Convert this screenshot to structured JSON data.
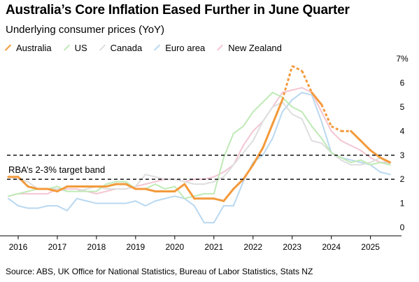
{
  "title": "Australia’s Core Inflation Eased Further in June Quarter",
  "subtitle": "Underlying consumer prices (YoY)",
  "source": "Source: ABS, UK Office for National Statistics, Bureau of Labor Statistics, Stats NZ",
  "chart_data": {
    "type": "line",
    "title": "Australia’s Core Inflation Eased Further in June Quarter",
    "subtitle": "Underlying consumer prices (YoY)",
    "xlim": [
      2015.75,
      2025.65
    ],
    "ylim": [
      -0.2,
      7
    ],
    "y_ticks": [
      0,
      1,
      2,
      3,
      4,
      5,
      6,
      7
    ],
    "y_tick_labels": [
      "0",
      "1",
      "2",
      "3",
      "4",
      "5",
      "6",
      "7%"
    ],
    "x_ticks": [
      2016,
      2017,
      2018,
      2019,
      2020,
      2021,
      2022,
      2023,
      2024,
      2025
    ],
    "x_tick_labels": [
      "2016",
      "2017",
      "2018",
      "2019",
      "2020",
      "2021",
      "2022",
      "2023",
      "2024",
      "2025"
    ],
    "legend_position": "top",
    "grid": false,
    "reference_lines": [
      {
        "y": 3,
        "style": "dashed"
      },
      {
        "y": 2,
        "style": "dashed"
      }
    ],
    "annotations": [
      {
        "text": "RBA’s 2-3% target band"
      }
    ],
    "series": [
      {
        "name": "Australia",
        "color": "#f39a3c",
        "x": [
          2015.75,
          2016.0,
          2016.25,
          2016.5,
          2016.75,
          2017.0,
          2017.25,
          2017.5,
          2017.75,
          2018.0,
          2018.25,
          2018.5,
          2018.75,
          2019.0,
          2019.25,
          2019.5,
          2019.75,
          2020.0,
          2020.25,
          2020.5,
          2020.75,
          2021.0,
          2021.25,
          2021.5,
          2021.75,
          2022.0,
          2022.25,
          2022.5,
          2022.75,
          2023.0,
          2023.25,
          2023.5,
          2023.75,
          2024.0,
          2024.25,
          2024.5,
          2024.75,
          2025.0,
          2025.25,
          2025.5
        ],
        "values": [
          2.1,
          2.1,
          1.7,
          1.6,
          1.6,
          1.5,
          1.7,
          1.7,
          1.7,
          1.7,
          1.7,
          1.8,
          1.8,
          1.6,
          1.6,
          1.5,
          1.5,
          1.5,
          1.8,
          1.2,
          1.2,
          1.2,
          1.1,
          1.6,
          2.0,
          2.6,
          3.3,
          4.3,
          5.3,
          6.7,
          6.5,
          5.6,
          5.1,
          4.2,
          4.0,
          4.0,
          3.6,
          3.2,
          2.9,
          2.7
        ],
        "dashed_segments_between": [
          [
            2022.75,
            2023.5
          ],
          [
            2023.75,
            2024.5
          ]
        ]
      },
      {
        "name": "US",
        "color": "#bfeab6",
        "x": [
          2015.75,
          2016.0,
          2016.25,
          2016.5,
          2016.75,
          2017.0,
          2017.25,
          2017.5,
          2017.75,
          2018.0,
          2018.25,
          2018.5,
          2018.75,
          2019.0,
          2019.25,
          2019.5,
          2019.75,
          2020.0,
          2020.25,
          2020.5,
          2020.75,
          2021.0,
          2021.25,
          2021.5,
          2021.75,
          2022.0,
          2022.25,
          2022.5,
          2022.75,
          2023.0,
          2023.25,
          2023.5,
          2023.75,
          2024.0,
          2024.25,
          2024.5,
          2024.75,
          2025.0,
          2025.25,
          2025.5
        ],
        "values": [
          1.3,
          1.4,
          1.5,
          1.6,
          1.6,
          1.7,
          1.5,
          1.5,
          1.5,
          1.5,
          1.8,
          1.9,
          1.9,
          1.6,
          1.6,
          1.8,
          1.6,
          1.7,
          1.2,
          1.3,
          1.4,
          1.4,
          2.9,
          3.9,
          4.2,
          4.8,
          5.2,
          5.6,
          5.4,
          5.0,
          4.8,
          4.2,
          3.7,
          3.1,
          2.9,
          2.7,
          2.8,
          2.6,
          2.7,
          2.6
        ]
      },
      {
        "name": "Canada",
        "color": "#dedede",
        "x": [
          2015.75,
          2016.0,
          2016.25,
          2016.5,
          2016.75,
          2017.0,
          2017.25,
          2017.5,
          2017.75,
          2018.0,
          2018.25,
          2018.5,
          2018.75,
          2019.0,
          2019.25,
          2019.5,
          2019.75,
          2020.0,
          2020.25,
          2020.5,
          2020.75,
          2021.0,
          2021.25,
          2021.5,
          2021.75,
          2022.0,
          2022.25,
          2022.5,
          2022.75,
          2023.0,
          2023.25,
          2023.5,
          2023.75,
          2024.0,
          2024.25,
          2024.5,
          2024.75,
          2025.0,
          2025.25,
          2025.5
        ],
        "values": [
          2.1,
          2.0,
          1.9,
          1.6,
          1.6,
          1.6,
          1.5,
          1.5,
          1.6,
          1.7,
          1.6,
          1.6,
          1.6,
          1.7,
          2.2,
          2.1,
          2.0,
          2.0,
          1.9,
          1.8,
          1.8,
          1.9,
          2.1,
          2.6,
          3.1,
          3.6,
          4.4,
          5.0,
          5.2,
          4.7,
          4.5,
          3.6,
          3.5,
          3.1,
          2.8,
          2.6,
          2.6,
          2.7,
          2.9,
          2.6
        ]
      },
      {
        "name": "Euro area",
        "color": "#b9d8f1",
        "x": [
          2015.75,
          2016.0,
          2016.25,
          2016.5,
          2016.75,
          2017.0,
          2017.25,
          2017.5,
          2017.75,
          2018.0,
          2018.25,
          2018.5,
          2018.75,
          2019.0,
          2019.25,
          2019.5,
          2019.75,
          2020.0,
          2020.25,
          2020.5,
          2020.75,
          2021.0,
          2021.25,
          2021.5,
          2021.75,
          2022.0,
          2022.25,
          2022.5,
          2022.75,
          2023.0,
          2023.25,
          2023.5,
          2023.75,
          2024.0,
          2024.25,
          2024.5,
          2024.75,
          2025.0,
          2025.25,
          2025.5
        ],
        "values": [
          1.2,
          0.9,
          0.8,
          0.8,
          0.9,
          0.9,
          0.7,
          1.2,
          1.1,
          1.0,
          1.0,
          1.0,
          1.0,
          1.1,
          0.9,
          1.1,
          1.2,
          1.3,
          1.2,
          0.9,
          0.2,
          0.2,
          0.9,
          0.9,
          1.9,
          2.7,
          3.0,
          3.7,
          4.8,
          5.3,
          5.6,
          5.5,
          4.4,
          3.1,
          2.9,
          2.8,
          2.7,
          2.6,
          2.3,
          2.2
        ]
      },
      {
        "name": "New Zealand",
        "color": "#f3c6d2",
        "x": [
          2015.75,
          2016.0,
          2016.25,
          2016.5,
          2016.75,
          2017.0,
          2017.25,
          2017.5,
          2017.75,
          2018.0,
          2018.25,
          2018.5,
          2018.75,
          2019.0,
          2019.25,
          2019.5,
          2019.75,
          2020.0,
          2020.25,
          2020.5,
          2020.75,
          2021.0,
          2021.25,
          2021.5,
          2021.75,
          2022.0,
          2022.25,
          2022.5,
          2022.75,
          2023.0,
          2023.25,
          2023.5,
          2023.75,
          2024.0,
          2024.25,
          2024.5,
          2024.75,
          2025.0,
          2025.25,
          2025.5
        ],
        "values": [
          1.3,
          1.4,
          1.4,
          1.4,
          1.4,
          1.6,
          1.6,
          1.6,
          1.5,
          1.4,
          1.5,
          1.6,
          1.6,
          1.7,
          1.8,
          1.9,
          2.0,
          2.0,
          1.9,
          2.0,
          2.0,
          2.1,
          2.3,
          2.6,
          3.4,
          4.0,
          4.4,
          5.0,
          5.6,
          5.7,
          5.8,
          5.6,
          4.8,
          4.0,
          3.6,
          3.4,
          3.2,
          2.9,
          2.7,
          2.7
        ]
      }
    ]
  }
}
